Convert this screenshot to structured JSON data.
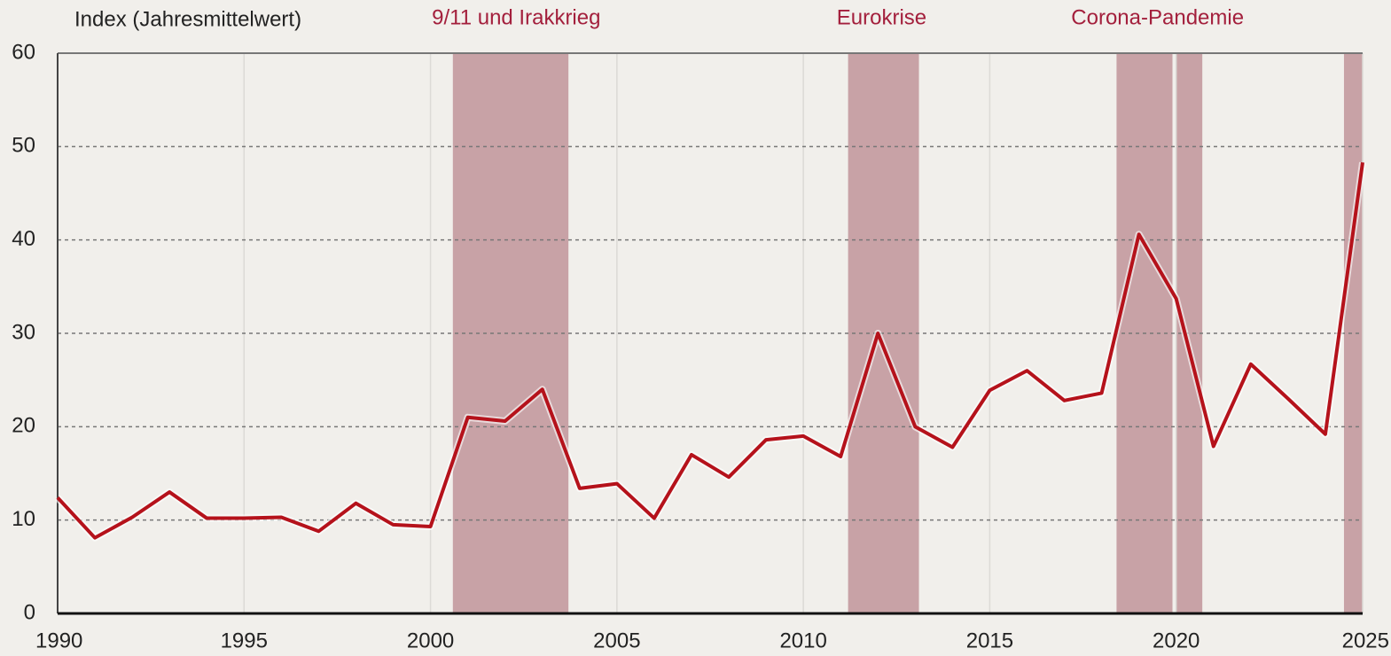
{
  "chart_data": {
    "type": "line",
    "ylabel": "Index (Jahresmittelwert)",
    "x": [
      1990,
      1991,
      1992,
      1993,
      1994,
      1995,
      1996,
      1997,
      1998,
      1999,
      2000,
      2001,
      2002,
      2003,
      2004,
      2005,
      2006,
      2007,
      2008,
      2009,
      2010,
      2011,
      2012,
      2013,
      2014,
      2015,
      2016,
      2017,
      2018,
      2019,
      2020,
      2021,
      2022,
      2023,
      2024,
      2025
    ],
    "series": [
      {
        "color": "#b5121b",
        "values": [
          12.4,
          8.1,
          10.3,
          13.0,
          10.2,
          10.2,
          10.3,
          8.8,
          11.8,
          9.5,
          9.3,
          21.0,
          20.6,
          24.0,
          13.4,
          13.9,
          10.2,
          17.0,
          14.6,
          18.6,
          19.0,
          16.8,
          30.0,
          20.0,
          17.8,
          23.9,
          26.0,
          22.8,
          23.6,
          40.6,
          33.7,
          17.9,
          26.7,
          23.0,
          19.2,
          48.3
        ]
      }
    ],
    "bands": [
      {
        "start": 2000.6,
        "end": 2003.7
      },
      {
        "start": 2011.2,
        "end": 2013.1
      },
      {
        "start": 2018.4,
        "end": 2019.9
      },
      {
        "start": 2020.0,
        "end": 2020.7
      },
      {
        "start": 2024.5,
        "end": 2025.0
      }
    ],
    "band_color": "#c8a2a6",
    "annotations": [
      {
        "text": "9/11 und Irakkrieg",
        "x": 2002.3
      },
      {
        "text": "Eurokrise",
        "x": 2012.1
      },
      {
        "text": "Corona-Pandemie",
        "x": 2019.5
      }
    ],
    "annotation_color": "#a31f3c",
    "xlim": [
      1990,
      2025
    ],
    "xticks": [
      1990,
      1995,
      2000,
      2005,
      2010,
      2015,
      2020,
      2025
    ],
    "ylim": [
      0,
      60
    ],
    "yticks": [
      0,
      10,
      20,
      30,
      40,
      50,
      60
    ],
    "grid": true
  }
}
